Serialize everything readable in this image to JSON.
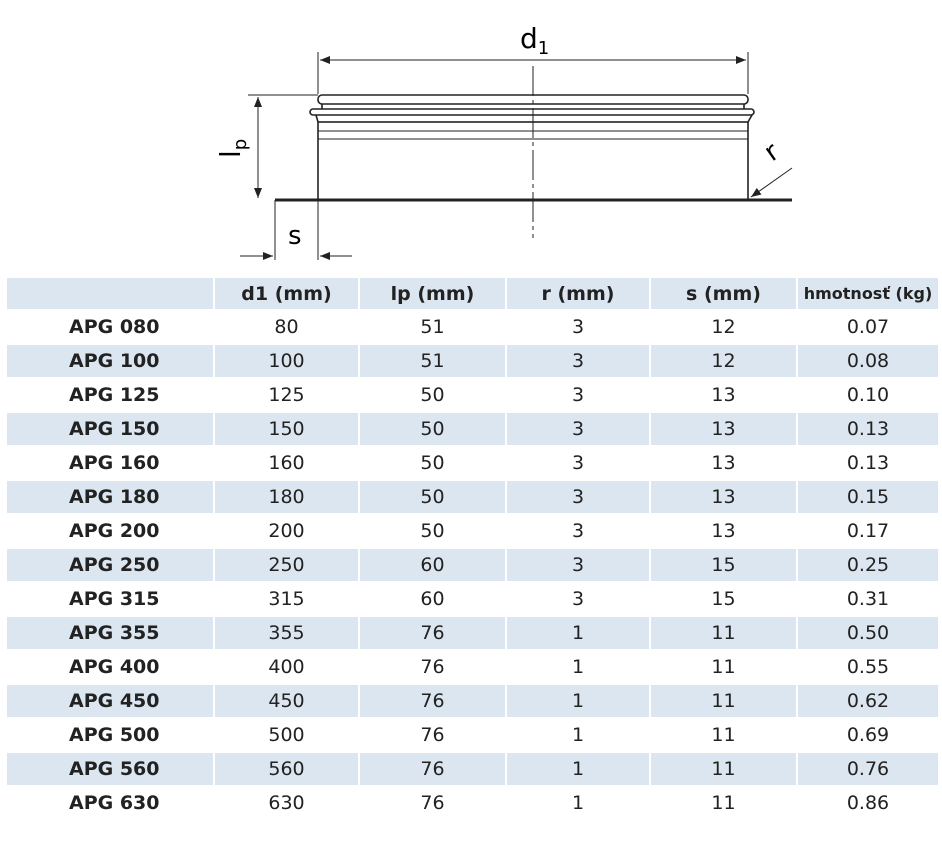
{
  "diagram": {
    "labels": {
      "d1": {
        "base": "d",
        "sub": "1"
      },
      "lp": {
        "base": "l",
        "sub": "p"
      },
      "r": "r",
      "s": "s"
    }
  },
  "table": {
    "columns": [
      "d1 (mm)",
      "lp (mm)",
      "r (mm)",
      "s (mm)",
      "hmotnosť (kg)"
    ],
    "rows": [
      [
        "APG 080",
        "80",
        "51",
        "3",
        "12",
        "0.07"
      ],
      [
        "APG 100",
        "100",
        "51",
        "3",
        "12",
        "0.08"
      ],
      [
        "APG 125",
        "125",
        "50",
        "3",
        "13",
        "0.10"
      ],
      [
        "APG 150",
        "150",
        "50",
        "3",
        "13",
        "0.13"
      ],
      [
        "APG 160",
        "160",
        "50",
        "3",
        "13",
        "0.13"
      ],
      [
        "APG 180",
        "180",
        "50",
        "3",
        "13",
        "0.15"
      ],
      [
        "APG 200",
        "200",
        "50",
        "3",
        "13",
        "0.17"
      ],
      [
        "APG 250",
        "250",
        "60",
        "3",
        "15",
        "0.25"
      ],
      [
        "APG 315",
        "315",
        "60",
        "3",
        "15",
        "0.31"
      ],
      [
        "APG 355",
        "355",
        "76",
        "1",
        "11",
        "0.50"
      ],
      [
        "APG 400",
        "400",
        "76",
        "1",
        "11",
        "0.55"
      ],
      [
        "APG 450",
        "450",
        "76",
        "1",
        "11",
        "0.62"
      ],
      [
        "APG 500",
        "500",
        "76",
        "1",
        "11",
        "0.69"
      ],
      [
        "APG 560",
        "560",
        "76",
        "1",
        "11",
        "0.76"
      ],
      [
        "APG 630",
        "630",
        "76",
        "1",
        "11",
        "0.86"
      ]
    ]
  }
}
